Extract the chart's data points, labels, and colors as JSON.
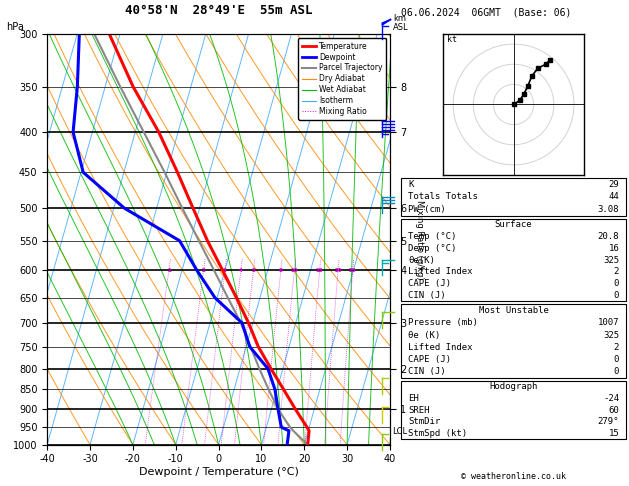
{
  "title_center": "40°58'N  28°49'E  55m ASL",
  "date_title": "06.06.2024  06GMT  (Base: 06)",
  "xlabel": "Dewpoint / Temperature (°C)",
  "P_min": 300,
  "P_max": 1000,
  "T_min": -40,
  "T_max": 40,
  "skew_factor": 27,
  "pressure_all": [
    300,
    350,
    400,
    450,
    500,
    550,
    600,
    650,
    700,
    750,
    800,
    850,
    900,
    950,
    1000
  ],
  "pressure_major": [
    300,
    400,
    500,
    600,
    700,
    800,
    900,
    1000
  ],
  "temperature_profile": {
    "pressure": [
      1000,
      960,
      950,
      925,
      900,
      850,
      800,
      750,
      700,
      650,
      600,
      550,
      500,
      450,
      400,
      350,
      300
    ],
    "temp": [
      20.8,
      20.2,
      19.5,
      17.5,
      15.5,
      11.5,
      7.2,
      2.8,
      -1.0,
      -5.5,
      -10.5,
      -16.0,
      -21.5,
      -27.5,
      -34.5,
      -43.5,
      -52.5
    ]
  },
  "dewpoint_profile": {
    "pressure": [
      1000,
      960,
      950,
      925,
      900,
      850,
      800,
      750,
      700,
      650,
      600,
      550,
      500,
      450,
      400,
      350,
      300
    ],
    "temp": [
      16.0,
      15.5,
      13.5,
      12.5,
      11.5,
      9.5,
      6.5,
      0.8,
      -2.5,
      -10.5,
      -16.5,
      -22.5,
      -37.5,
      -49.5,
      -54.5,
      -56.5,
      -59.5
    ]
  },
  "parcel_profile": {
    "pressure": [
      1000,
      960,
      950,
      925,
      900,
      850,
      800,
      750,
      700,
      650,
      600,
      550,
      500,
      450,
      400,
      350,
      300
    ],
    "temp": [
      20.8,
      16.5,
      15.5,
      13.5,
      11.5,
      8.0,
      4.5,
      1.0,
      -2.8,
      -7.5,
      -12.5,
      -18.0,
      -24.0,
      -30.5,
      -38.0,
      -46.5,
      -56.0
    ]
  },
  "lcl_pressure": 963,
  "mixing_ratios": [
    1,
    2,
    3,
    4,
    5,
    8,
    10,
    15,
    20,
    25
  ],
  "thetas_dry": [
    -30,
    -20,
    -10,
    0,
    10,
    20,
    30,
    40,
    50,
    60,
    70,
    80,
    90,
    100,
    110,
    120,
    130,
    140,
    150,
    160,
    170,
    180
  ],
  "thetas_moist_start": [
    -20,
    -15,
    -10,
    -5,
    0,
    5,
    10,
    15,
    20,
    25,
    30,
    35,
    40
  ],
  "km_pressure_labels": [
    [
      350,
      "8"
    ],
    [
      400,
      "7"
    ],
    [
      500,
      "6"
    ],
    [
      550,
      "5"
    ],
    [
      600,
      "4"
    ],
    [
      700,
      "3"
    ],
    [
      800,
      "2"
    ],
    [
      900,
      "1"
    ]
  ],
  "colors": {
    "temperature": "#ff0000",
    "dewpoint": "#0000ff",
    "parcel": "#888888",
    "dry_adiabat": "#ff8800",
    "wet_adiabat": "#00bb00",
    "isotherm": "#44aaff",
    "mixing_ratio": "#dd00dd",
    "background": "#ffffff"
  },
  "legend_entries": [
    {
      "label": "Temperature",
      "color": "#ff0000",
      "lw": 2.0,
      "ls": "-"
    },
    {
      "label": "Dewpoint",
      "color": "#0000ff",
      "lw": 2.0,
      "ls": "-"
    },
    {
      "label": "Parcel Trajectory",
      "color": "#888888",
      "lw": 1.5,
      "ls": "-"
    },
    {
      "label": "Dry Adiabat",
      "color": "#ff8800",
      "lw": 0.8,
      "ls": "-"
    },
    {
      "label": "Wet Adiabat",
      "color": "#00bb00",
      "lw": 0.8,
      "ls": "-"
    },
    {
      "label": "Isotherm",
      "color": "#44aaff",
      "lw": 0.8,
      "ls": "-"
    },
    {
      "label": "Mixing Ratio",
      "color": "#dd00dd",
      "lw": 0.7,
      "ls": ":"
    }
  ],
  "table_ktt": [
    [
      "K",
      "29"
    ],
    [
      "Totals Totals",
      "44"
    ],
    [
      "PW (cm)",
      "3.08"
    ]
  ],
  "table_surface_title": "Surface",
  "table_surface": [
    [
      "Temp (°C)",
      "20.8"
    ],
    [
      "Dewp (°C)",
      "16"
    ],
    [
      "θe(K)",
      "325"
    ],
    [
      "Lifted Index",
      "2"
    ],
    [
      "CAPE (J)",
      "0"
    ],
    [
      "CIN (J)",
      "0"
    ]
  ],
  "table_mu_title": "Most Unstable",
  "table_mu": [
    [
      "Pressure (mb)",
      "1007"
    ],
    [
      "θe (K)",
      "325"
    ],
    [
      "Lifted Index",
      "2"
    ],
    [
      "CAPE (J)",
      "0"
    ],
    [
      "CIN (J)",
      "0"
    ]
  ],
  "table_hodo_title": "Hodograph",
  "table_hodo": [
    [
      "EH",
      "-24"
    ],
    [
      "SREH",
      "60"
    ],
    [
      "StmDir",
      "279°"
    ],
    [
      "StmSpd (kt)",
      "15"
    ]
  ],
  "copyright": "© weatheronline.co.uk",
  "hodo_u": [
    0,
    3,
    5,
    7,
    9,
    12,
    16,
    18
  ],
  "hodo_v": [
    0,
    2,
    5,
    9,
    14,
    18,
    20,
    22
  ],
  "wind_barb_data": [
    {
      "pressure": 300,
      "color": "#0000ff",
      "knots": 55
    },
    {
      "pressure": 400,
      "color": "#0000ff",
      "knots": 45
    },
    {
      "pressure": 500,
      "color": "#0088cc",
      "knots": 30
    },
    {
      "pressure": 600,
      "color": "#00aaaa",
      "knots": 15
    },
    {
      "pressure": 700,
      "color": "#88cc00",
      "knots": 10
    },
    {
      "pressure": 850,
      "color": "#aacc00",
      "knots": 8
    },
    {
      "pressure": 925,
      "color": "#cccc00",
      "knots": 5
    },
    {
      "pressure": 1000,
      "color": "#88cc00",
      "knots": 5
    }
  ]
}
